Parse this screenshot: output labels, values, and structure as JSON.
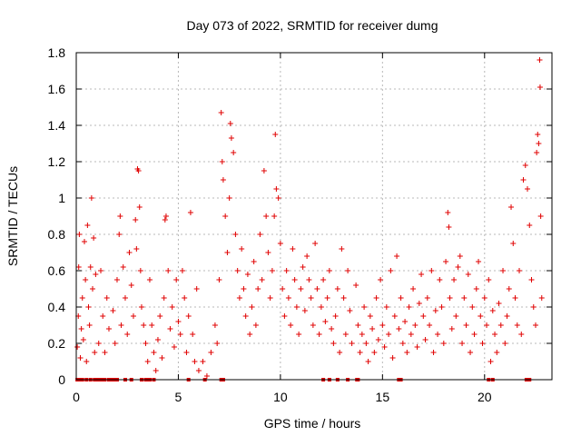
{
  "chart_data": {
    "type": "scatter",
    "title": "Day 073 of 2022, SRMTID for receiver dumg",
    "xlabel": "GPS time / hours",
    "ylabel": "SRMTID / TECUs",
    "xlim": [
      0,
      23.3
    ],
    "ylim": [
      0,
      1.8
    ],
    "xticks": [
      0,
      5,
      10,
      15,
      20
    ],
    "yticks": [
      0,
      0.2,
      0.4,
      0.6,
      0.8,
      1,
      1.2,
      1.4,
      1.6,
      1.8
    ],
    "ytick_labels": [
      "0",
      "0.2",
      "0.4",
      "0.6",
      "0.8",
      "1",
      "1.2",
      "1.4",
      "1.6",
      "1.8"
    ],
    "grid": true,
    "marker": "plus",
    "color": "#e00000",
    "series": [
      {
        "points": [
          [
            0.05,
            0.18
          ],
          [
            0.1,
            0.35
          ],
          [
            0.12,
            0.62
          ],
          [
            0.15,
            0.8
          ],
          [
            0.2,
            0.12
          ],
          [
            0.25,
            0.28
          ],
          [
            0.3,
            0.45
          ],
          [
            0.35,
            0.22
          ],
          [
            0.4,
            0.76
          ],
          [
            0.45,
            0.55
          ],
          [
            0.5,
            0.1
          ],
          [
            0.55,
            0.85
          ],
          [
            0.6,
            0.4
          ],
          [
            0.65,
            0.3
          ],
          [
            0.7,
            0.62
          ],
          [
            0.75,
            1.0
          ],
          [
            0.8,
            0.5
          ],
          [
            0.85,
            0.78
          ],
          [
            0.9,
            0.15
          ],
          [
            0.95,
            0.58
          ],
          [
            1.1,
            0.2
          ],
          [
            1.2,
            0.6
          ],
          [
            1.3,
            0.35
          ],
          [
            1.4,
            0.15
          ],
          [
            1.5,
            0.45
          ],
          [
            1.6,
            0.28
          ],
          [
            1.8,
            0.38
          ],
          [
            1.9,
            0.2
          ],
          [
            2.0,
            0.55
          ],
          [
            2.1,
            0.8
          ],
          [
            2.15,
            0.9
          ],
          [
            2.2,
            0.3
          ],
          [
            2.3,
            0.62
          ],
          [
            2.4,
            0.45
          ],
          [
            2.5,
            0.25
          ],
          [
            2.6,
            0.7
          ],
          [
            2.7,
            0.52
          ],
          [
            2.8,
            0.35
          ],
          [
            2.9,
            0.88
          ],
          [
            2.95,
            0.72
          ],
          [
            3.0,
            1.16
          ],
          [
            3.05,
            1.15
          ],
          [
            3.1,
            0.95
          ],
          [
            3.15,
            0.6
          ],
          [
            3.2,
            0.4
          ],
          [
            3.3,
            0.3
          ],
          [
            3.4,
            0.2
          ],
          [
            3.5,
            0.1
          ],
          [
            3.6,
            0.55
          ],
          [
            3.7,
            0.3
          ],
          [
            3.8,
            0.15
          ],
          [
            3.9,
            0.05
          ],
          [
            4.0,
            0.22
          ],
          [
            4.1,
            0.35
          ],
          [
            4.2,
            0.12
          ],
          [
            4.3,
            0.45
          ],
          [
            4.35,
            0.88
          ],
          [
            4.4,
            0.9
          ],
          [
            4.5,
            0.6
          ],
          [
            4.6,
            0.28
          ],
          [
            4.7,
            0.4
          ],
          [
            4.8,
            0.18
          ],
          [
            4.9,
            0.55
          ],
          [
            5.0,
            0.32
          ],
          [
            5.1,
            0.25
          ],
          [
            5.2,
            0.6
          ],
          [
            5.3,
            0.45
          ],
          [
            5.4,
            0.15
          ],
          [
            5.5,
            0.35
          ],
          [
            5.6,
            0.92
          ],
          [
            5.7,
            0.25
          ],
          [
            5.8,
            0.1
          ],
          [
            5.9,
            0.5
          ],
          [
            6.0,
            0.05
          ],
          [
            6.2,
            0.1
          ],
          [
            6.4,
            0.02
          ],
          [
            6.6,
            0.15
          ],
          [
            6.8,
            0.3
          ],
          [
            6.9,
            0.2
          ],
          [
            7.0,
            0.55
          ],
          [
            7.1,
            1.47
          ],
          [
            7.15,
            1.2
          ],
          [
            7.2,
            1.1
          ],
          [
            7.3,
            0.9
          ],
          [
            7.4,
            0.7
          ],
          [
            7.5,
            1.0
          ],
          [
            7.55,
            1.41
          ],
          [
            7.6,
            1.33
          ],
          [
            7.7,
            1.25
          ],
          [
            7.8,
            0.8
          ],
          [
            7.9,
            0.6
          ],
          [
            8.0,
            0.45
          ],
          [
            8.1,
            0.72
          ],
          [
            8.2,
            0.5
          ],
          [
            8.3,
            0.35
          ],
          [
            8.4,
            0.58
          ],
          [
            8.5,
            0.25
          ],
          [
            8.6,
            0.4
          ],
          [
            8.7,
            0.65
          ],
          [
            8.8,
            0.3
          ],
          [
            8.9,
            0.5
          ],
          [
            9.0,
            0.8
          ],
          [
            9.1,
            0.55
          ],
          [
            9.2,
            1.15
          ],
          [
            9.3,
            0.9
          ],
          [
            9.4,
            0.7
          ],
          [
            9.5,
            0.45
          ],
          [
            9.6,
            0.6
          ],
          [
            9.7,
            0.9
          ],
          [
            9.75,
            1.35
          ],
          [
            9.8,
            1.05
          ],
          [
            9.9,
            1.0
          ],
          [
            10.0,
            0.75
          ],
          [
            10.1,
            0.5
          ],
          [
            10.2,
            0.35
          ],
          [
            10.3,
            0.6
          ],
          [
            10.4,
            0.45
          ],
          [
            10.5,
            0.3
          ],
          [
            10.6,
            0.72
          ],
          [
            10.7,
            0.55
          ],
          [
            10.8,
            0.4
          ],
          [
            10.9,
            0.25
          ],
          [
            11.0,
            0.5
          ],
          [
            11.1,
            0.62
          ],
          [
            11.2,
            0.38
          ],
          [
            11.3,
            0.68
          ],
          [
            11.4,
            0.55
          ],
          [
            11.5,
            0.45
          ],
          [
            11.6,
            0.3
          ],
          [
            11.7,
            0.75
          ],
          [
            11.8,
            0.5
          ],
          [
            11.9,
            0.25
          ],
          [
            12.0,
            0.4
          ],
          [
            12.1,
            0.55
          ],
          [
            12.2,
            0.32
          ],
          [
            12.3,
            0.45
          ],
          [
            12.4,
            0.6
          ],
          [
            12.5,
            0.28
          ],
          [
            12.6,
            0.2
          ],
          [
            12.7,
            0.35
          ],
          [
            12.8,
            0.5
          ],
          [
            12.9,
            0.15
          ],
          [
            13.0,
            0.72
          ],
          [
            13.1,
            0.45
          ],
          [
            13.2,
            0.25
          ],
          [
            13.3,
            0.6
          ],
          [
            13.4,
            0.38
          ],
          [
            13.5,
            0.2
          ],
          [
            13.7,
            0.52
          ],
          [
            13.8,
            0.3
          ],
          [
            13.9,
            0.15
          ],
          [
            14.0,
            0.25
          ],
          [
            14.1,
            0.4
          ],
          [
            14.2,
            0.2
          ],
          [
            14.3,
            0.1
          ],
          [
            14.4,
            0.35
          ],
          [
            14.5,
            0.28
          ],
          [
            14.6,
            0.15
          ],
          [
            14.7,
            0.45
          ],
          [
            14.8,
            0.22
          ],
          [
            14.9,
            0.55
          ],
          [
            15.0,
            0.3
          ],
          [
            15.1,
            0.18
          ],
          [
            15.2,
            0.4
          ],
          [
            15.3,
            0.25
          ],
          [
            15.4,
            0.6
          ],
          [
            15.5,
            0.12
          ],
          [
            15.6,
            0.35
          ],
          [
            15.7,
            0.68
          ],
          [
            15.8,
            0.28
          ],
          [
            15.9,
            0.45
          ],
          [
            16.0,
            0.2
          ],
          [
            16.1,
            0.32
          ],
          [
            16.2,
            0.15
          ],
          [
            16.3,
            0.4
          ],
          [
            16.4,
            0.25
          ],
          [
            16.5,
            0.5
          ],
          [
            16.6,
            0.3
          ],
          [
            16.7,
            0.18
          ],
          [
            16.8,
            0.42
          ],
          [
            16.9,
            0.58
          ],
          [
            17.0,
            0.35
          ],
          [
            17.1,
            0.22
          ],
          [
            17.2,
            0.45
          ],
          [
            17.3,
            0.3
          ],
          [
            17.4,
            0.6
          ],
          [
            17.5,
            0.15
          ],
          [
            17.6,
            0.38
          ],
          [
            17.7,
            0.25
          ],
          [
            17.8,
            0.55
          ],
          [
            17.9,
            0.4
          ],
          [
            18.0,
            0.2
          ],
          [
            18.1,
            0.65
          ],
          [
            18.2,
            0.92
          ],
          [
            18.25,
            0.84
          ],
          [
            18.3,
            0.45
          ],
          [
            18.4,
            0.28
          ],
          [
            18.5,
            0.55
          ],
          [
            18.6,
            0.35
          ],
          [
            18.7,
            0.62
          ],
          [
            18.8,
            0.68
          ],
          [
            18.9,
            0.2
          ],
          [
            19.0,
            0.45
          ],
          [
            19.1,
            0.3
          ],
          [
            19.2,
            0.58
          ],
          [
            19.3,
            0.15
          ],
          [
            19.4,
            0.4
          ],
          [
            19.5,
            0.25
          ],
          [
            19.6,
            0.5
          ],
          [
            19.7,
            0.65
          ],
          [
            19.8,
            0.35
          ],
          [
            19.9,
            0.2
          ],
          [
            20.0,
            0.45
          ],
          [
            20.1,
            0.3
          ],
          [
            20.2,
            0.55
          ],
          [
            20.3,
            0.1
          ],
          [
            20.4,
            0.38
          ],
          [
            20.5,
            0.25
          ],
          [
            20.6,
            0.15
          ],
          [
            20.7,
            0.42
          ],
          [
            20.8,
            0.3
          ],
          [
            20.9,
            0.6
          ],
          [
            21.0,
            0.2
          ],
          [
            21.1,
            0.35
          ],
          [
            21.2,
            0.5
          ],
          [
            21.3,
            0.95
          ],
          [
            21.4,
            0.75
          ],
          [
            21.5,
            0.45
          ],
          [
            21.6,
            0.3
          ],
          [
            21.7,
            0.6
          ],
          [
            21.8,
            0.25
          ],
          [
            21.9,
            1.1
          ],
          [
            22.0,
            1.18
          ],
          [
            22.1,
            1.05
          ],
          [
            22.2,
            0.85
          ],
          [
            22.3,
            0.55
          ],
          [
            22.4,
            0.4
          ],
          [
            22.5,
            0.3
          ],
          [
            22.55,
            1.25
          ],
          [
            22.6,
            1.35
          ],
          [
            22.65,
            1.3
          ],
          [
            22.7,
            1.76
          ],
          [
            22.72,
            1.61
          ],
          [
            22.75,
            0.9
          ],
          [
            22.8,
            0.45
          ]
        ]
      }
    ],
    "zero_points_x": [
      0.05,
      0.12,
      0.2,
      0.3,
      0.5,
      0.7,
      0.9,
      1.05,
      1.15,
      1.25,
      1.4,
      1.6,
      1.75,
      1.85,
      2.0,
      2.4,
      2.7,
      3.2,
      3.4,
      3.5,
      3.6,
      3.8,
      5.5,
      6.3,
      7.1,
      7.2,
      12.1,
      12.4,
      12.8,
      13.3,
      13.75,
      13.8,
      15.8,
      15.9,
      20.2,
      20.4,
      22.05,
      22.2
    ]
  }
}
